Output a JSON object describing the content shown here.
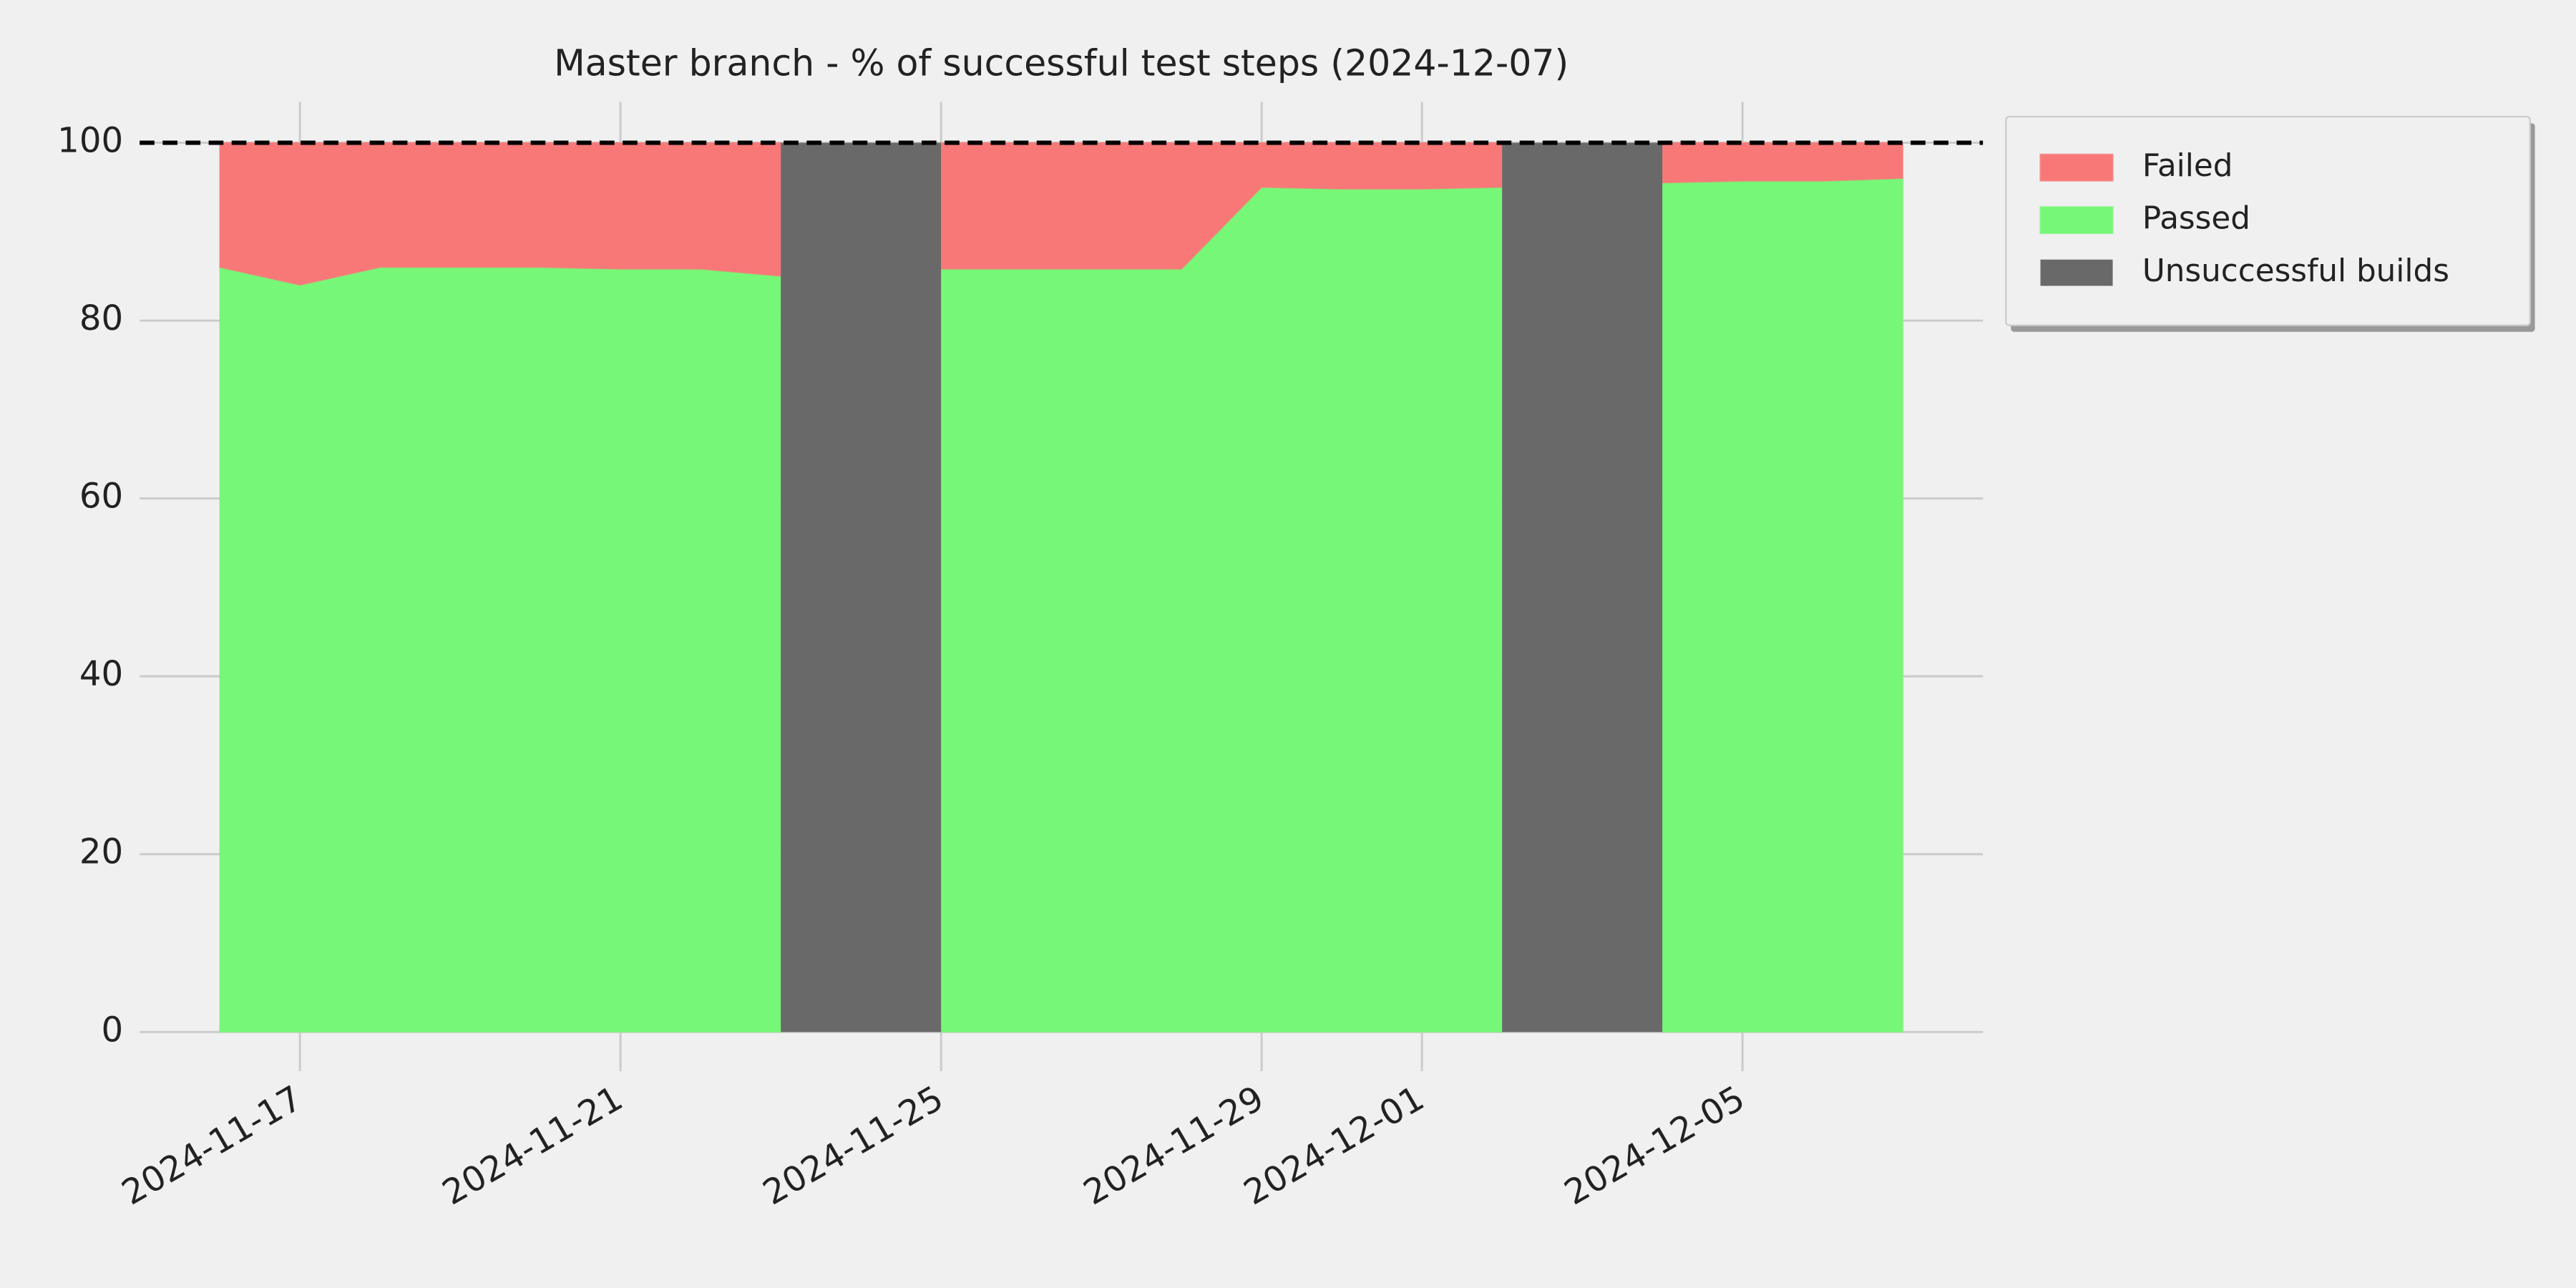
{
  "chart_data": {
    "type": "area",
    "title": "Master branch - % of successful test steps (2024-12-07)",
    "x": [
      "2024-11-16",
      "2024-11-17",
      "2024-11-18",
      "2024-11-19",
      "2024-11-20",
      "2024-11-21",
      "2024-11-22",
      "2024-11-23",
      "2024-11-24",
      "2024-11-25",
      "2024-11-26",
      "2024-11-27",
      "2024-11-28",
      "2024-11-29",
      "2024-11-30",
      "2024-12-01",
      "2024-12-02",
      "2024-12-03",
      "2024-12-04",
      "2024-12-05",
      "2024-12-06",
      "2024-12-07"
    ],
    "series": [
      {
        "name": "Failed",
        "color": "#f87878",
        "values": [
          14,
          16,
          14,
          14,
          14,
          14.2,
          14.2,
          15,
          null,
          14.2,
          14.2,
          14.2,
          14.2,
          5,
          5.2,
          5.2,
          5,
          null,
          4.5,
          4.3,
          4.3,
          4
        ]
      },
      {
        "name": "Passed",
        "color": "#77f777",
        "values": [
          86,
          84,
          86,
          86,
          86,
          85.8,
          85.8,
          85,
          null,
          85.8,
          85.8,
          85.8,
          85.8,
          95,
          94.8,
          94.8,
          95,
          null,
          95.5,
          95.7,
          95.7,
          96
        ]
      },
      {
        "name": "Unsuccessful builds",
        "type": "bar",
        "color": "#696969",
        "values": [
          null,
          null,
          null,
          null,
          null,
          null,
          null,
          null,
          100,
          null,
          null,
          null,
          null,
          null,
          null,
          null,
          null,
          100,
          null,
          null,
          null,
          null
        ]
      }
    ],
    "hline": 100,
    "xlim": [
      "2024-11-15",
      "2024-12-08"
    ],
    "xticks": [
      "2024-11-17",
      "2024-11-21",
      "2024-11-25",
      "2024-11-29",
      "2024-12-01",
      "2024-12-05"
    ],
    "ylim": [
      -4.4,
      104.6
    ],
    "yticks": [
      0,
      20,
      40,
      60,
      80,
      100
    ],
    "grid": true,
    "legend": "outside-upper-right"
  }
}
